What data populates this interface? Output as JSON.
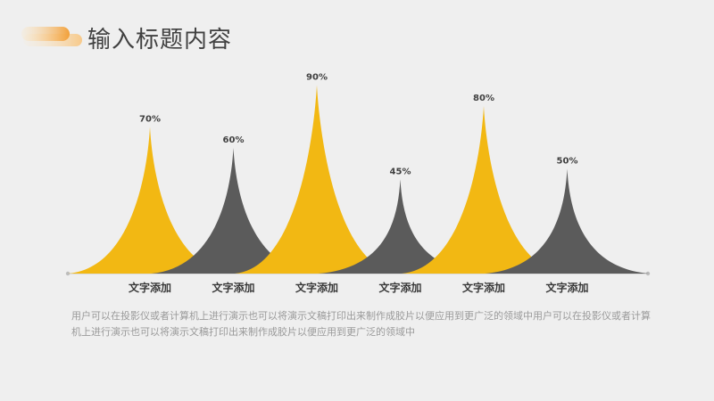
{
  "title": "输入标题内容",
  "description": "用户可以在投影仪或者计算机上进行演示也可以将演示文稿打印出来制作成胶片以便应用到更广泛的领域中用户可以在投影仪或者计算机上进行演示也可以将演示文稿打印出来制作成胶片以便应用到更广泛的领域中",
  "colors": {
    "yellow": "#f2b813",
    "gray": "#5b5b5b",
    "axis": "#c8c8c8",
    "label": "#404040",
    "title": "#404040"
  },
  "chart_data": {
    "type": "area",
    "title": "",
    "xlabel": "",
    "ylabel": "",
    "ylim": [
      0,
      100
    ],
    "grid": false,
    "categories": [
      "文字添加",
      "文字添加",
      "文字添加",
      "文字添加",
      "文字添加",
      "文字添加"
    ],
    "values": [
      70,
      60,
      90,
      45,
      80,
      50
    ],
    "value_labels": [
      "70%",
      "60%",
      "90%",
      "45%",
      "80%",
      "50%"
    ],
    "series_colors": [
      "yellow",
      "gray",
      "yellow",
      "gray",
      "yellow",
      "gray"
    ]
  }
}
